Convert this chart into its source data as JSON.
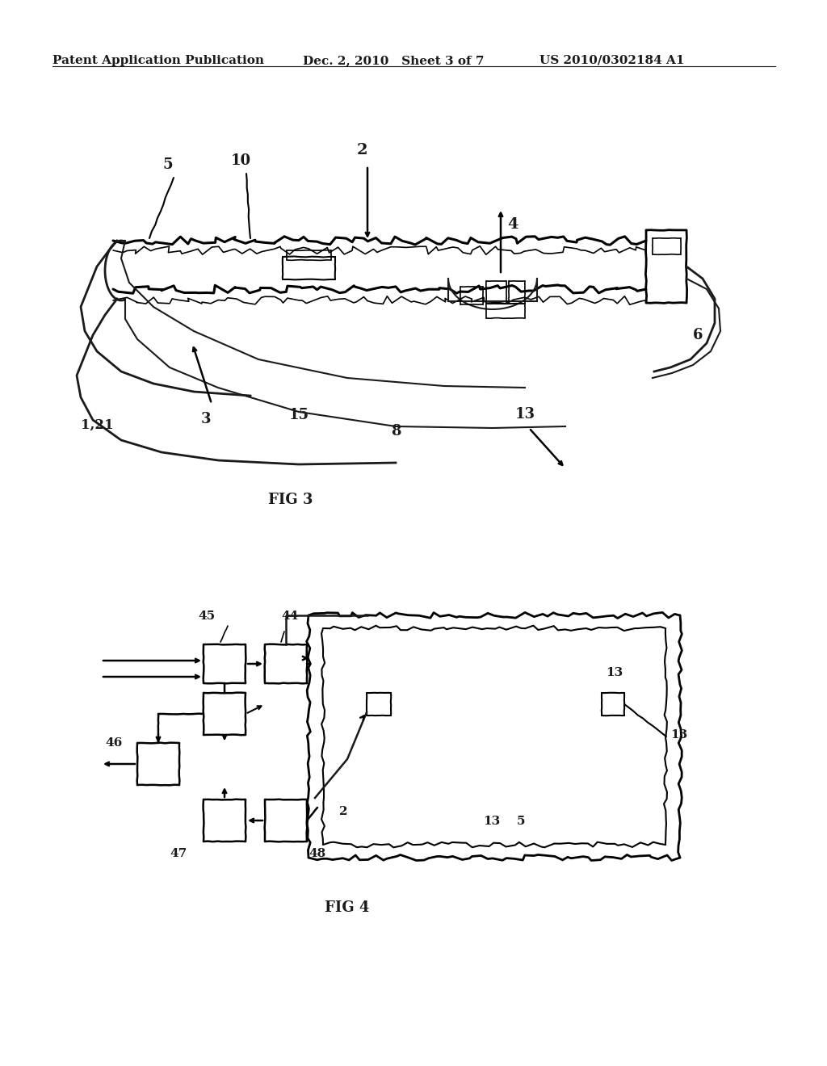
{
  "header_left": "Patent Application Publication",
  "header_mid": "Dec. 2, 2010   Sheet 3 of 7",
  "header_right": "US 2010/0302184 A1",
  "fig3_label": "FIG 3",
  "fig4_label": "FIG 4",
  "bg_color": "#ffffff",
  "line_color": "#1a1a1a",
  "text_color": "#1a1a1a"
}
